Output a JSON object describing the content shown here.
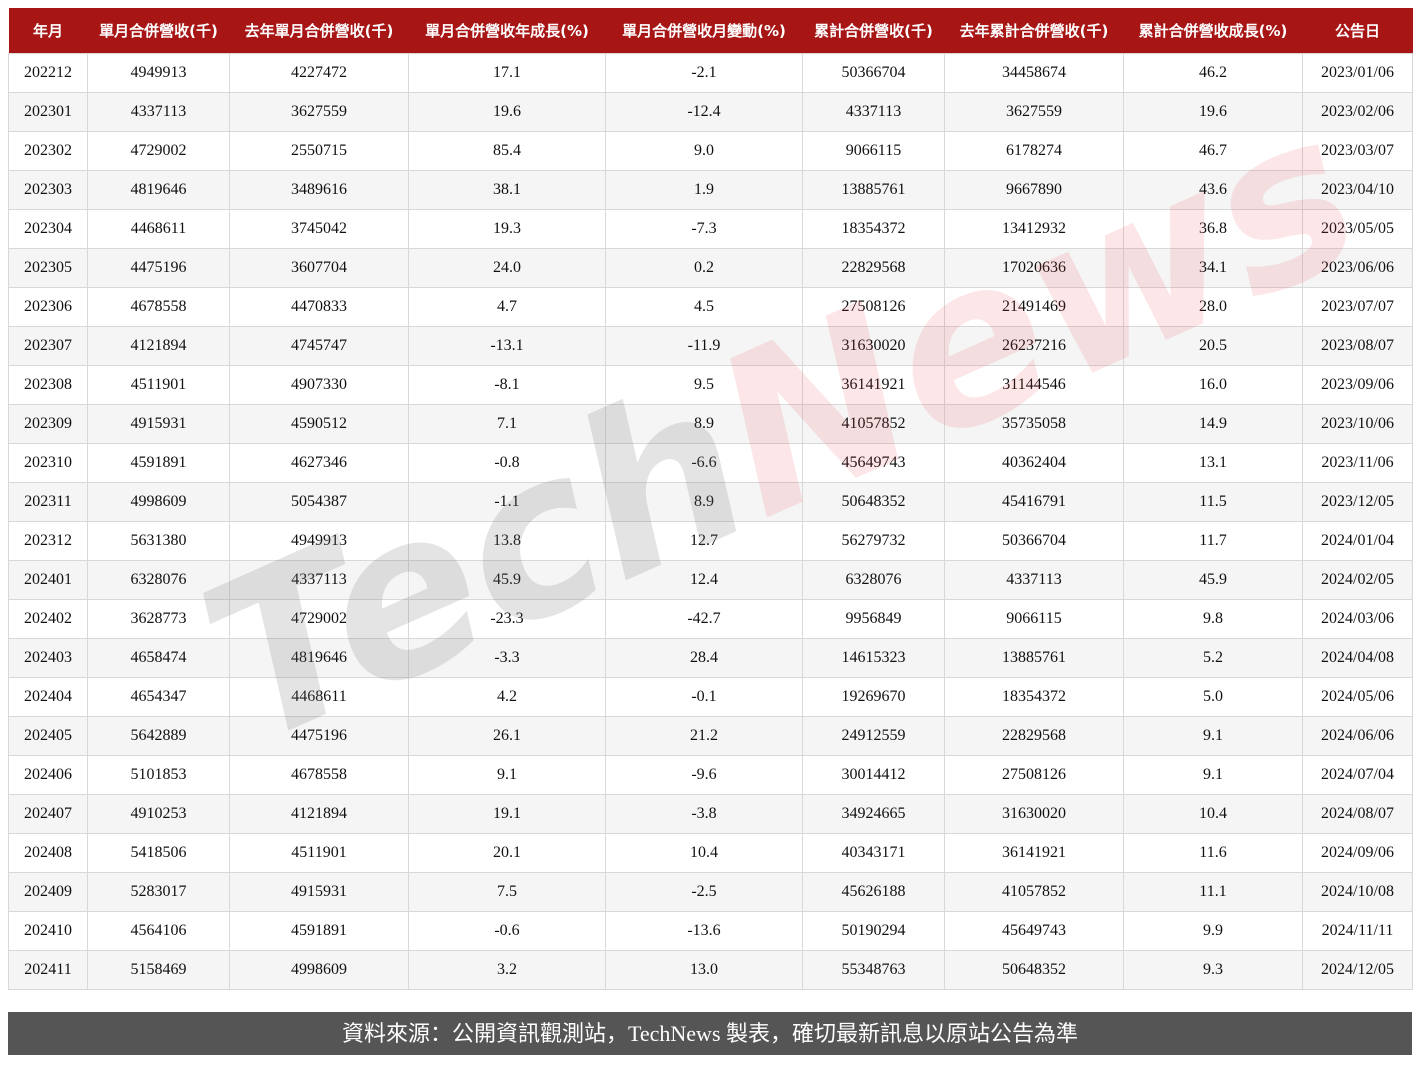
{
  "table": {
    "headers": [
      "年月",
      "單月合併營收(千)",
      "去年單月合併營收(千)",
      "單月合併營收年成長(%)",
      "單月合併營收月變動(%)",
      "累計合併營收(千)",
      "去年累計合併營收(千)",
      "累計合併營收成長(%)",
      "公告日"
    ],
    "rows": [
      [
        "202212",
        "4949913",
        "4227472",
        "17.1",
        "-2.1",
        "50366704",
        "34458674",
        "46.2",
        "2023/01/06"
      ],
      [
        "202301",
        "4337113",
        "3627559",
        "19.6",
        "-12.4",
        "4337113",
        "3627559",
        "19.6",
        "2023/02/06"
      ],
      [
        "202302",
        "4729002",
        "2550715",
        "85.4",
        "9.0",
        "9066115",
        "6178274",
        "46.7",
        "2023/03/07"
      ],
      [
        "202303",
        "4819646",
        "3489616",
        "38.1",
        "1.9",
        "13885761",
        "9667890",
        "43.6",
        "2023/04/10"
      ],
      [
        "202304",
        "4468611",
        "3745042",
        "19.3",
        "-7.3",
        "18354372",
        "13412932",
        "36.8",
        "2023/05/05"
      ],
      [
        "202305",
        "4475196",
        "3607704",
        "24.0",
        "0.2",
        "22829568",
        "17020636",
        "34.1",
        "2023/06/06"
      ],
      [
        "202306",
        "4678558",
        "4470833",
        "4.7",
        "4.5",
        "27508126",
        "21491469",
        "28.0",
        "2023/07/07"
      ],
      [
        "202307",
        "4121894",
        "4745747",
        "-13.1",
        "-11.9",
        "31630020",
        "26237216",
        "20.5",
        "2023/08/07"
      ],
      [
        "202308",
        "4511901",
        "4907330",
        "-8.1",
        "9.5",
        "36141921",
        "31144546",
        "16.0",
        "2023/09/06"
      ],
      [
        "202309",
        "4915931",
        "4590512",
        "7.1",
        "8.9",
        "41057852",
        "35735058",
        "14.9",
        "2023/10/06"
      ],
      [
        "202310",
        "4591891",
        "4627346",
        "-0.8",
        "-6.6",
        "45649743",
        "40362404",
        "13.1",
        "2023/11/06"
      ],
      [
        "202311",
        "4998609",
        "5054387",
        "-1.1",
        "8.9",
        "50648352",
        "45416791",
        "11.5",
        "2023/12/05"
      ],
      [
        "202312",
        "5631380",
        "4949913",
        "13.8",
        "12.7",
        "56279732",
        "50366704",
        "11.7",
        "2024/01/04"
      ],
      [
        "202401",
        "6328076",
        "4337113",
        "45.9",
        "12.4",
        "6328076",
        "4337113",
        "45.9",
        "2024/02/05"
      ],
      [
        "202402",
        "3628773",
        "4729002",
        "-23.3",
        "-42.7",
        "9956849",
        "9066115",
        "9.8",
        "2024/03/06"
      ],
      [
        "202403",
        "4658474",
        "4819646",
        "-3.3",
        "28.4",
        "14615323",
        "13885761",
        "5.2",
        "2024/04/08"
      ],
      [
        "202404",
        "4654347",
        "4468611",
        "4.2",
        "-0.1",
        "19269670",
        "18354372",
        "5.0",
        "2024/05/06"
      ],
      [
        "202405",
        "5642889",
        "4475196",
        "26.1",
        "21.2",
        "24912559",
        "22829568",
        "9.1",
        "2024/06/06"
      ],
      [
        "202406",
        "5101853",
        "4678558",
        "9.1",
        "-9.6",
        "30014412",
        "27508126",
        "9.1",
        "2024/07/04"
      ],
      [
        "202407",
        "4910253",
        "4121894",
        "19.1",
        "-3.8",
        "34924665",
        "31630020",
        "10.4",
        "2024/08/07"
      ],
      [
        "202408",
        "5418506",
        "4511901",
        "20.1",
        "10.4",
        "40343171",
        "36141921",
        "11.6",
        "2024/09/06"
      ],
      [
        "202409",
        "5283017",
        "4915931",
        "7.5",
        "-2.5",
        "45626188",
        "41057852",
        "11.1",
        "2024/10/08"
      ],
      [
        "202410",
        "4564106",
        "4591891",
        "-0.6",
        "-13.6",
        "50190294",
        "45649743",
        "9.9",
        "2024/11/11"
      ],
      [
        "202411",
        "5158469",
        "4998609",
        "3.2",
        "13.0",
        "55348763",
        "50648352",
        "9.3",
        "2024/12/05"
      ]
    ]
  },
  "watermark": {
    "part1": "Tech",
    "part2": "News"
  },
  "footer": {
    "source": "資料來源：公開資訊觀測站，TechNews 製表，確切最新訊息以原站公告為準"
  },
  "colors": {
    "header_bg": "#a71515",
    "footer_bg": "#555555"
  }
}
